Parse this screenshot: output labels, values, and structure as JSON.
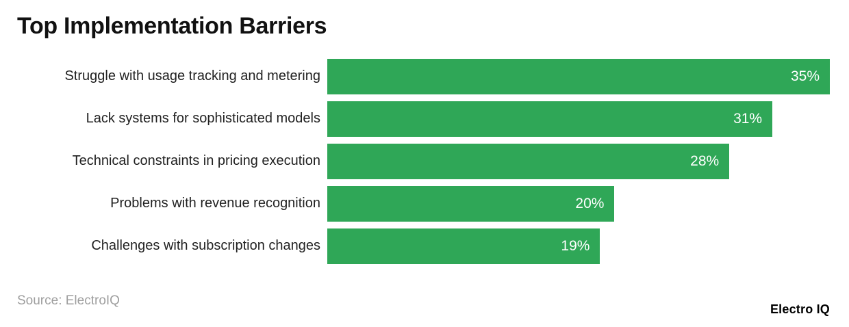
{
  "header": {
    "title": "Top Implementation Barriers"
  },
  "chart_data": {
    "type": "bar",
    "orientation": "horizontal",
    "title": "Top Implementation Barriers",
    "categories": [
      "Struggle with usage tracking and metering",
      "Lack systems for sophisticated models",
      "Technical constraints in pricing execution",
      "Problems with revenue recognition",
      "Challenges with subscription changes"
    ],
    "values": [
      35,
      31,
      28,
      20,
      19
    ],
    "value_labels": [
      "35%",
      "31%",
      "28%",
      "20%",
      "19%"
    ],
    "xlim": [
      0,
      35
    ],
    "bar_color": "#2FA757",
    "value_label_color": "#FFFFFF",
    "label_color": "#212121",
    "grid": false,
    "legend": "none"
  },
  "footer": {
    "source": "Source: ElectroIQ",
    "brand": "Electro IQ"
  }
}
